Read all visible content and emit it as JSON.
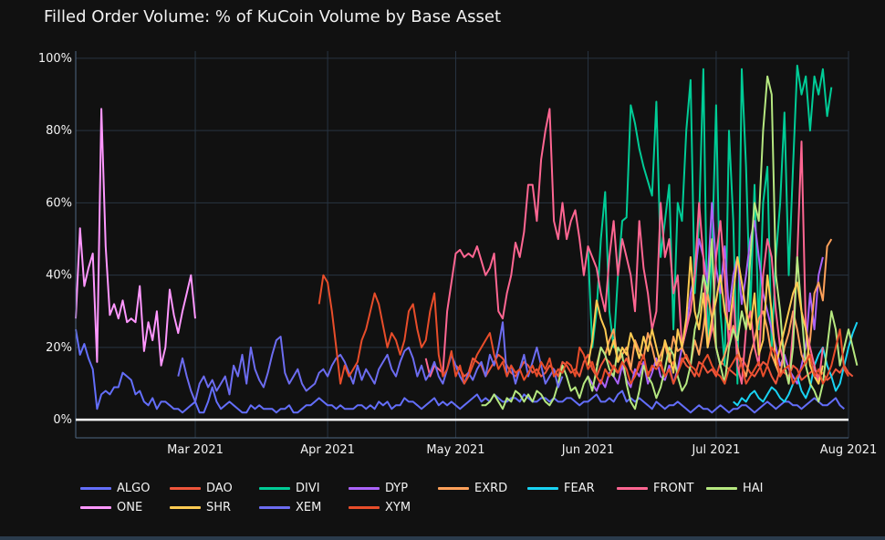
{
  "title": "Filled Order Volume: % of KuCoin Volume by Base Asset",
  "chart_data": {
    "type": "line",
    "title": "Filled Order Volume: % of KuCoin Volume by Base Asset",
    "xlabel": "",
    "ylabel": "",
    "x_range": [
      "2021-02-01",
      "2021-08-01"
    ],
    "y_range": [
      -5,
      102
    ],
    "x_ticks": [
      {
        "date": "2021-03-01",
        "label": "Mar 2021"
      },
      {
        "date": "2021-04-01",
        "label": "Apr 2021"
      },
      {
        "date": "2021-05-01",
        "label": "May 2021"
      },
      {
        "date": "2021-06-01",
        "label": "Jun 2021"
      },
      {
        "date": "2021-07-01",
        "label": "Jul 2021"
      },
      {
        "date": "2021-08-01",
        "label": "Aug 2021"
      }
    ],
    "y_ticks": [
      {
        "value": 0,
        "label": "0%"
      },
      {
        "value": 20,
        "label": "20%"
      },
      {
        "value": 40,
        "label": "40%"
      },
      {
        "value": 60,
        "label": "60%"
      },
      {
        "value": 80,
        "label": "80%"
      },
      {
        "value": 100,
        "label": "100%"
      }
    ],
    "grid": true,
    "legend_position": "bottom",
    "series": [
      {
        "name": "ALGO",
        "color": "#636efa",
        "start": "2021-02-01",
        "values": [
          25,
          18,
          21,
          17,
          14,
          3,
          7,
          8,
          7,
          9,
          9,
          13,
          12,
          11,
          7,
          8,
          5,
          4,
          6,
          3,
          5,
          5,
          4,
          3,
          3,
          2,
          3,
          4,
          5,
          2,
          2,
          5,
          9,
          5,
          3,
          4,
          5,
          4,
          3,
          2,
          2,
          4,
          3,
          4,
          3,
          3,
          3,
          2,
          3,
          3,
          4,
          2,
          2,
          3,
          4,
          4,
          5,
          6,
          5,
          4,
          4,
          3,
          4,
          3,
          3,
          3,
          4,
          4,
          3,
          4,
          3,
          5,
          4,
          5,
          3,
          4,
          4,
          6,
          5,
          5,
          4,
          3,
          4,
          5,
          6,
          4,
          5,
          4,
          5,
          4,
          3,
          4,
          5,
          6,
          7,
          5,
          6,
          5,
          7,
          6,
          5,
          5,
          6,
          6,
          5,
          7,
          6,
          5,
          5,
          6,
          6,
          5,
          6,
          5,
          5,
          6,
          6,
          5,
          4,
          5,
          5,
          6,
          7,
          5,
          5,
          6,
          5,
          7,
          8,
          5,
          6,
          5,
          6,
          5,
          4,
          3,
          5,
          4,
          3,
          4,
          4,
          5,
          4,
          3,
          2,
          3,
          4,
          3,
          3,
          2,
          3,
          4,
          3,
          2,
          3,
          3,
          4,
          4,
          3,
          2,
          3,
          4,
          5,
          4,
          3,
          4,
          5,
          5,
          4,
          4,
          3,
          4,
          5,
          6,
          5,
          4,
          4,
          5,
          6,
          4,
          3
        ]
      },
      {
        "name": "DAO",
        "color": "#ef553b",
        "start": "2021-04-01",
        "values": [
          null,
          null,
          null,
          null,
          null,
          null,
          null,
          null,
          null,
          null,
          null,
          null,
          null,
          null,
          null,
          null,
          null,
          null,
          null,
          null,
          null,
          null,
          null,
          null,
          null,
          null,
          null,
          null,
          null,
          null,
          15,
          14,
          12,
          13,
          17,
          16,
          15,
          12,
          14,
          16,
          18,
          17,
          15,
          13,
          12,
          14,
          16,
          15,
          13,
          14,
          12,
          13,
          15,
          14,
          12,
          16,
          15,
          13,
          14,
          12,
          16,
          18,
          14,
          12,
          15,
          17,
          16,
          14,
          13,
          15,
          17,
          14,
          12,
          16,
          15,
          13,
          14,
          16,
          15,
          12,
          14,
          16,
          13,
          17,
          15,
          14,
          12,
          16,
          15,
          13,
          14,
          12,
          16,
          15,
          14,
          13,
          12,
          17,
          15,
          13,
          12,
          14,
          16,
          15,
          12,
          10,
          14,
          13,
          12,
          15,
          14,
          11,
          12,
          13,
          14,
          12,
          13,
          11,
          12,
          14,
          13,
          15,
          13,
          12
        ]
      },
      {
        "name": "DIVI",
        "color": "#00cc96",
        "start": "2021-06-01",
        "values": [
          47,
          20,
          30,
          50,
          63,
          30,
          20,
          40,
          55,
          56,
          87,
          82,
          75,
          70,
          66,
          62,
          88,
          45,
          55,
          65,
          25,
          60,
          55,
          80,
          94,
          35,
          55,
          97,
          20,
          45,
          87,
          30,
          15,
          80,
          55,
          10,
          97,
          70,
          30,
          65,
          25,
          60,
          70,
          20,
          45,
          60,
          85,
          40,
          70,
          98,
          90,
          95,
          80,
          95,
          90,
          97,
          84,
          92
        ]
      },
      {
        "name": "DYP",
        "color": "#ab63fa",
        "start": "2021-06-01",
        "values": [
          12,
          10,
          8,
          11,
          9,
          13,
          12,
          10,
          15,
          11,
          9,
          14,
          12,
          16,
          10,
          13,
          17,
          12,
          11,
          15,
          10,
          14,
          20,
          25,
          35,
          40,
          50,
          45,
          38,
          60,
          42,
          35,
          48,
          30,
          40,
          45,
          32,
          40,
          50,
          55,
          45,
          35,
          30,
          25,
          20,
          15,
          18,
          14,
          12,
          10,
          15,
          20,
          35,
          25,
          40,
          45
        ]
      },
      {
        "name": "EXRD",
        "color": "#ffa15a",
        "start": "2021-06-03",
        "values": [
          15,
          20,
          18,
          22,
          25,
          16,
          18,
          20,
          14,
          22,
          19,
          17,
          24,
          20,
          15,
          18,
          21,
          16,
          23,
          19,
          20,
          17,
          15,
          22,
          18,
          25,
          35,
          28,
          20,
          15,
          18,
          22,
          26,
          20,
          15,
          12,
          18,
          22,
          28,
          30,
          25,
          18,
          15,
          12,
          20,
          24,
          30,
          25,
          18,
          15,
          22,
          35,
          38,
          33,
          48,
          50
        ]
      },
      {
        "name": "FEAR",
        "color": "#19d3f3",
        "start": "2021-07-05",
        "values": [
          5,
          4,
          6,
          5,
          7,
          8,
          6,
          5,
          7,
          9,
          8,
          6,
          5,
          7,
          10,
          12,
          8,
          6,
          9,
          15,
          18,
          20,
          15,
          12,
          8,
          10,
          15,
          20,
          24,
          27
        ]
      },
      {
        "name": "FRONT",
        "color": "#ff6692",
        "start": "2021-04-24",
        "values": [
          17,
          12,
          15,
          14,
          13,
          30,
          38,
          46,
          47,
          45,
          46,
          45,
          48,
          44,
          40,
          42,
          46,
          30,
          28,
          35,
          40,
          49,
          45,
          52,
          65,
          65,
          55,
          72,
          80,
          86,
          55,
          50,
          60,
          50,
          55,
          58,
          50,
          40,
          48,
          45,
          42,
          35,
          30,
          45,
          55,
          40,
          50,
          45,
          40,
          30,
          55,
          42,
          35,
          25,
          30,
          60,
          45,
          50,
          35,
          40,
          20,
          25,
          30,
          40,
          60,
          45,
          20,
          25,
          45,
          55,
          40,
          20,
          35,
          15,
          10,
          25,
          30,
          20,
          15,
          40,
          50,
          45,
          30,
          20,
          15,
          10,
          25,
          45,
          77,
          25,
          20,
          15,
          10,
          20
        ]
      },
      {
        "name": "HAI",
        "color": "#b6e880",
        "start": "2021-05-07",
        "values": [
          4,
          4,
          5,
          7,
          5,
          3,
          6,
          5,
          8,
          7,
          5,
          7,
          5,
          8,
          7,
          5,
          4,
          6,
          10,
          15,
          12,
          8,
          9,
          6,
          10,
          12,
          8,
          14,
          20,
          18,
          14,
          12,
          20,
          18,
          10,
          5,
          3,
          8,
          15,
          12,
          10,
          6,
          9,
          14,
          20,
          18,
          12,
          8,
          10,
          15,
          25,
          30,
          40,
          35,
          50,
          20,
          15,
          10,
          20,
          25,
          22,
          30,
          25,
          45,
          60,
          55,
          80,
          95,
          90,
          40,
          30,
          15,
          10,
          20,
          45,
          30,
          15,
          10,
          8,
          5,
          10,
          20,
          30,
          25,
          15,
          20,
          25,
          20,
          15
        ]
      },
      {
        "name": "ONE",
        "color": "#ff97ff",
        "start": "2021-02-01",
        "values": [
          28,
          53,
          37,
          42,
          46,
          16,
          86,
          48,
          29,
          32,
          28,
          33,
          27,
          28,
          27,
          37,
          19,
          27,
          22,
          30,
          15,
          20,
          36,
          29,
          24,
          30,
          35,
          40,
          28
        ]
      },
      {
        "name": "SHR",
        "color": "#fecb52",
        "start": "2021-06-01",
        "values": [
          15,
          22,
          33,
          28,
          25,
          18,
          22,
          16,
          20,
          18,
          24,
          21,
          17,
          23,
          19,
          25,
          20,
          15,
          22,
          18,
          13,
          25,
          20,
          28,
          45,
          30,
          25,
          35,
          20,
          28,
          33,
          40,
          30,
          25,
          35,
          45,
          38,
          30,
          25,
          35,
          18,
          22,
          40,
          30,
          15,
          20,
          25,
          30,
          35,
          38,
          30,
          25,
          15,
          12,
          10,
          15
        ]
      },
      {
        "name": "XEM",
        "color": "#6c6cf0",
        "start": "2021-02-25",
        "values": [
          12,
          17,
          12,
          8,
          5,
          10,
          12,
          9,
          11,
          8,
          10,
          12,
          7,
          15,
          12,
          18,
          10,
          20,
          14,
          11,
          9,
          13,
          18,
          22,
          23,
          13,
          10,
          12,
          14,
          10,
          8,
          9,
          10,
          13,
          14,
          12,
          15,
          17,
          18,
          16,
          13,
          10,
          15,
          11,
          14,
          12,
          10,
          14,
          16,
          18,
          14,
          12,
          16,
          19,
          20,
          17,
          12,
          15,
          11,
          13,
          16,
          12,
          10,
          14,
          18,
          15,
          12,
          10,
          13,
          11,
          14,
          16,
          12,
          18,
          15,
          20,
          27,
          12,
          15,
          10,
          14,
          18,
          12,
          16,
          20,
          15,
          10,
          12,
          14,
          9,
          12
        ]
      },
      {
        "name": "XYM",
        "color": "#e84d2a",
        "start": "2021-03-30",
        "values": [
          32,
          40,
          38,
          30,
          20,
          10,
          15,
          12,
          14,
          16,
          22,
          25,
          30,
          35,
          32,
          26,
          20,
          24,
          22,
          18,
          22,
          30,
          32,
          25,
          20,
          22,
          30,
          35,
          18,
          12,
          14,
          19,
          12,
          15,
          10,
          12,
          15,
          18,
          20,
          22,
          24,
          18,
          14,
          16,
          12,
          15,
          13,
          14,
          11,
          13,
          15,
          12,
          16,
          14,
          17,
          12,
          14,
          13,
          16,
          15,
          12,
          20,
          18,
          14,
          16,
          12,
          10,
          14,
          12,
          15,
          13,
          16,
          14,
          10,
          12,
          15,
          18,
          12,
          15,
          14,
          16,
          12,
          14,
          10,
          13,
          16,
          18,
          15,
          14,
          12,
          16,
          18,
          15,
          13,
          12,
          10,
          14,
          16,
          18,
          15,
          10,
          12,
          14,
          16,
          12,
          15,
          20,
          18,
          12,
          14,
          15,
          10,
          12,
          14,
          16,
          18,
          12,
          14,
          10,
          12,
          15,
          20,
          25,
          14,
          12
        ]
      }
    ]
  }
}
